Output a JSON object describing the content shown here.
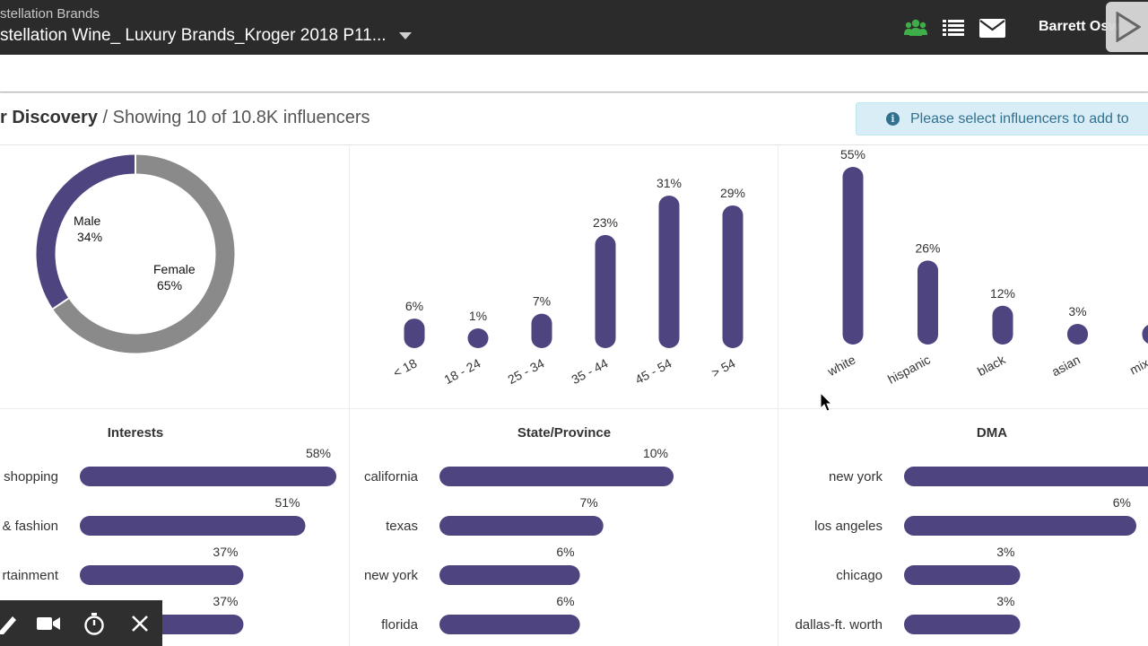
{
  "header": {
    "org": "stellation Brands",
    "campaign": "stellation Wine_ Luxury Brands_Kroger 2018 P11...",
    "user": "Barrett Osw",
    "icons": [
      "users-icon",
      "list-icon",
      "envelope-icon"
    ]
  },
  "title": {
    "bold": "r Discovery",
    "sub": " / Showing 10 of 10.8K influencers"
  },
  "notice": "Please select influencers to add to",
  "colors": {
    "bar": "#4e4580",
    "grey": "#8a8a8a",
    "header": "#2b2b2b"
  },
  "gender_chart": {
    "chart_data": {
      "type": "pie",
      "slices": [
        {
          "label": "Male",
          "value": 34,
          "display": "34%"
        },
        {
          "label": "Female",
          "value": 65,
          "display": "65%"
        }
      ]
    }
  },
  "age_chart": {
    "chart_data": {
      "type": "bar",
      "categories": [
        "< 18",
        "18 - 24",
        "25 - 34",
        "35 - 44",
        "45 - 54",
        "> 54"
      ],
      "values": [
        6,
        1,
        7,
        23,
        31,
        29
      ],
      "labels": [
        "6%",
        "1%",
        "7%",
        "23%",
        "31%",
        "29%"
      ]
    }
  },
  "ethnicity_chart": {
    "chart_data": {
      "type": "bar",
      "categories": [
        "white",
        "hispanic",
        "black",
        "asian",
        "mixe"
      ],
      "values": [
        55,
        26,
        12,
        3,
        3
      ],
      "labels": [
        "55%",
        "26%",
        "12%",
        "3%",
        ""
      ]
    }
  },
  "interests": {
    "title": "Interests",
    "chart_data": {
      "type": "bar",
      "categories": [
        "shopping",
        "& fashion",
        "rtainment",
        ""
      ],
      "values": [
        58,
        51,
        37,
        37
      ],
      "labels": [
        "58%",
        "51%",
        "37%",
        "37%"
      ]
    }
  },
  "states": {
    "title": "State/Province",
    "chart_data": {
      "type": "bar",
      "categories": [
        "california",
        "texas",
        "new york",
        "florida"
      ],
      "values": [
        10,
        7,
        6,
        6
      ],
      "labels": [
        "10%",
        "7%",
        "6%",
        "6%"
      ]
    }
  },
  "dma": {
    "title": "DMA",
    "chart_data": {
      "type": "bar",
      "categories": [
        "new york",
        "los angeles",
        "chicago",
        "dallas-ft. worth"
      ],
      "values": [
        7,
        6,
        3,
        3
      ],
      "labels": [
        "",
        "6%",
        "3%",
        "3%"
      ]
    }
  },
  "recorder": {
    "icons": [
      "pen-icon",
      "camera-icon",
      "timer-icon",
      "close-icon"
    ]
  }
}
